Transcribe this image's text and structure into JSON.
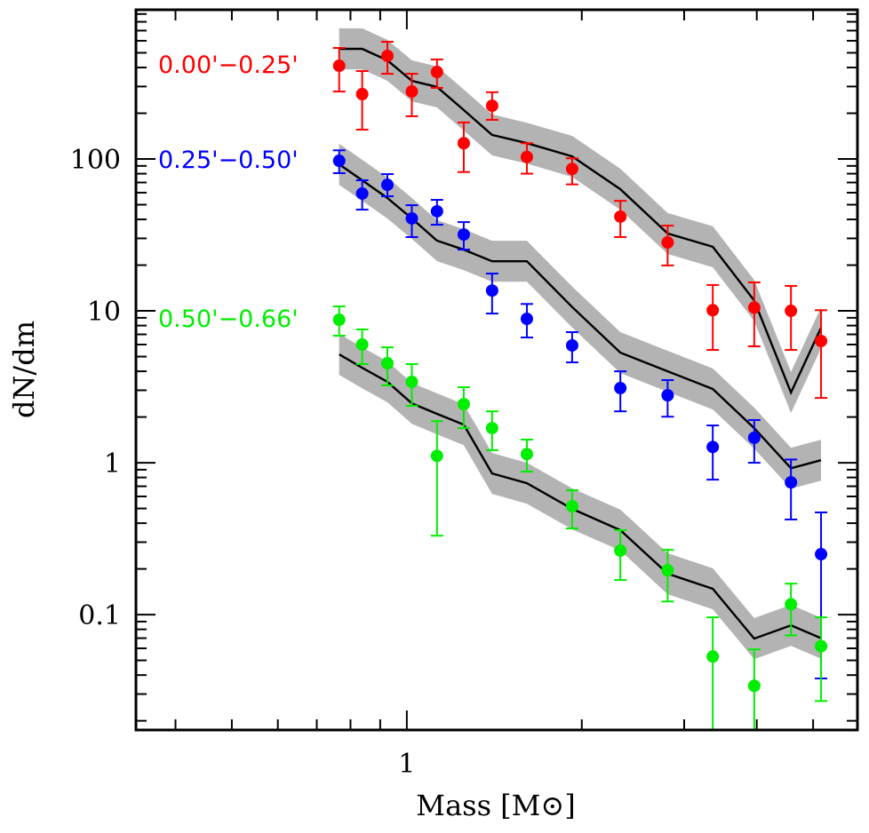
{
  "chart_data": {
    "type": "scatter",
    "title": "",
    "xlabel": "Mass [M⊙]",
    "ylabel": "dN/dm",
    "xscale": "log",
    "yscale": "log",
    "xlim": [
      0.342,
      5.96
    ],
    "ylim": [
      0.0174,
      960
    ],
    "grid": false,
    "legend": "inline-left",
    "x_tick_labels": [
      {
        "value": 1,
        "label": "1"
      }
    ],
    "x_minor_ticks": [
      0.4,
      0.5,
      0.6,
      0.7,
      0.8,
      0.9,
      2,
      3,
      4,
      5
    ],
    "y_tick_labels": [
      {
        "value": 100,
        "label": "100"
      },
      {
        "value": 10,
        "label": "10"
      },
      {
        "value": 1,
        "label": "1"
      },
      {
        "value": 0.1,
        "label": "0.1"
      }
    ],
    "model_band_halfwidth_dex": 0.135,
    "model_band_color": "#b3b3b3",
    "model_line_color": "#000000",
    "series": [
      {
        "name": "0.00'−0.25'",
        "color": "#ff0000",
        "label_anchor_value": 411,
        "x": [
          0.765,
          0.838,
          0.926,
          1.02,
          1.127,
          1.253,
          1.402,
          1.609,
          1.925,
          2.33,
          2.81,
          3.36,
          3.96,
          4.58,
          5.16
        ],
        "y": [
          411,
          267,
          477,
          278,
          374,
          127,
          224,
          103,
          86,
          41.7,
          28.2,
          10.1,
          10.5,
          10.0,
          6.33
        ],
        "y_err_high": [
          538,
          379,
          591,
          364,
          452,
          174,
          275,
          127,
          101,
          53,
          36.4,
          14.8,
          15.4,
          14.6,
          10.1
        ],
        "y_err_low": [
          278,
          156,
          364,
          191,
          294,
          82,
          181,
          80,
          68,
          30.6,
          19.9,
          5.53,
          5.84,
          5.53,
          2.67
        ],
        "model_x": [
          0.765,
          0.838,
          0.926,
          1.02,
          1.127,
          1.253,
          1.402,
          1.609,
          1.925,
          2.33,
          2.81,
          3.36,
          3.96,
          4.58,
          5.16
        ],
        "model_y": [
          531,
          531,
          446,
          327,
          298,
          210,
          144,
          127,
          104,
          63.2,
          32.3,
          26.4,
          11.7,
          2.9,
          7.74
        ]
      },
      {
        "name": "0.25'−0.50'",
        "color": "#0000ff",
        "label_anchor_value": 97.3,
        "x": [
          0.765,
          0.838,
          0.926,
          1.02,
          1.127,
          1.253,
          1.402,
          1.609,
          1.925,
          2.33,
          2.81,
          3.36,
          3.96,
          4.58,
          5.16
        ],
        "y": [
          97.3,
          59.2,
          67.6,
          40.6,
          45.2,
          31.8,
          13.6,
          8.86,
          5.92,
          3.1,
          2.78,
          1.27,
          1.46,
          0.743,
          0.25
        ],
        "y_err_high": [
          114,
          72.4,
          79.5,
          49.6,
          53.8,
          38.4,
          17.6,
          11.1,
          7.24,
          4.0,
          3.5,
          1.76,
          1.91,
          1.05,
          0.471
        ],
        "y_err_low": [
          80.6,
          46.4,
          56.8,
          30.6,
          36.9,
          25.3,
          9.6,
          6.68,
          4.58,
          2.18,
          2.01,
          0.774,
          1.0,
          0.423,
          0.038
        ],
        "model_x": [
          0.765,
          0.838,
          0.926,
          1.02,
          1.127,
          1.253,
          1.402,
          1.609,
          1.925,
          2.33,
          2.81,
          3.36,
          3.96,
          4.58,
          5.16
        ],
        "model_y": [
          92.2,
          72.4,
          55.3,
          40.6,
          29.0,
          25.3,
          21.2,
          21.2,
          10.6,
          5.31,
          4.0,
          3.06,
          1.69,
          0.92,
          1.04
        ]
      },
      {
        "name": "0.50'−0.66'",
        "color": "#00ee00",
        "label_anchor_value": 8.74,
        "x": [
          0.765,
          0.838,
          0.926,
          1.02,
          1.127,
          1.253,
          1.402,
          1.609,
          1.925,
          2.33,
          2.81,
          3.36,
          3.96,
          4.58,
          5.16
        ],
        "y": [
          8.74,
          6.0,
          4.52,
          3.41,
          1.11,
          2.43,
          1.69,
          1.14,
          0.517,
          0.264,
          0.196,
          0.053,
          0.034,
          0.117,
          0.062
        ],
        "y_err_high": [
          10.7,
          7.54,
          5.75,
          4.46,
          1.88,
          3.14,
          2.18,
          1.42,
          0.659,
          0.36,
          0.267,
          0.096,
          0.059,
          0.16,
          0.096
        ],
        "y_err_low": [
          6.86,
          4.46,
          3.23,
          2.37,
          0.331,
          1.69,
          1.21,
          0.874,
          0.369,
          0.169,
          0.122,
          0.001,
          0.001,
          0.073,
          0.027
        ],
        "model_x": [
          0.765,
          0.838,
          0.926,
          1.02,
          1.127,
          1.253,
          1.402,
          1.609,
          1.925,
          2.33,
          2.81,
          3.36,
          3.96,
          4.58,
          5.16
        ],
        "model_y": [
          5.17,
          4.22,
          3.41,
          2.46,
          2.1,
          1.78,
          0.851,
          0.733,
          0.497,
          0.36,
          0.186,
          0.148,
          0.0695,
          0.085,
          0.07
        ]
      }
    ]
  }
}
